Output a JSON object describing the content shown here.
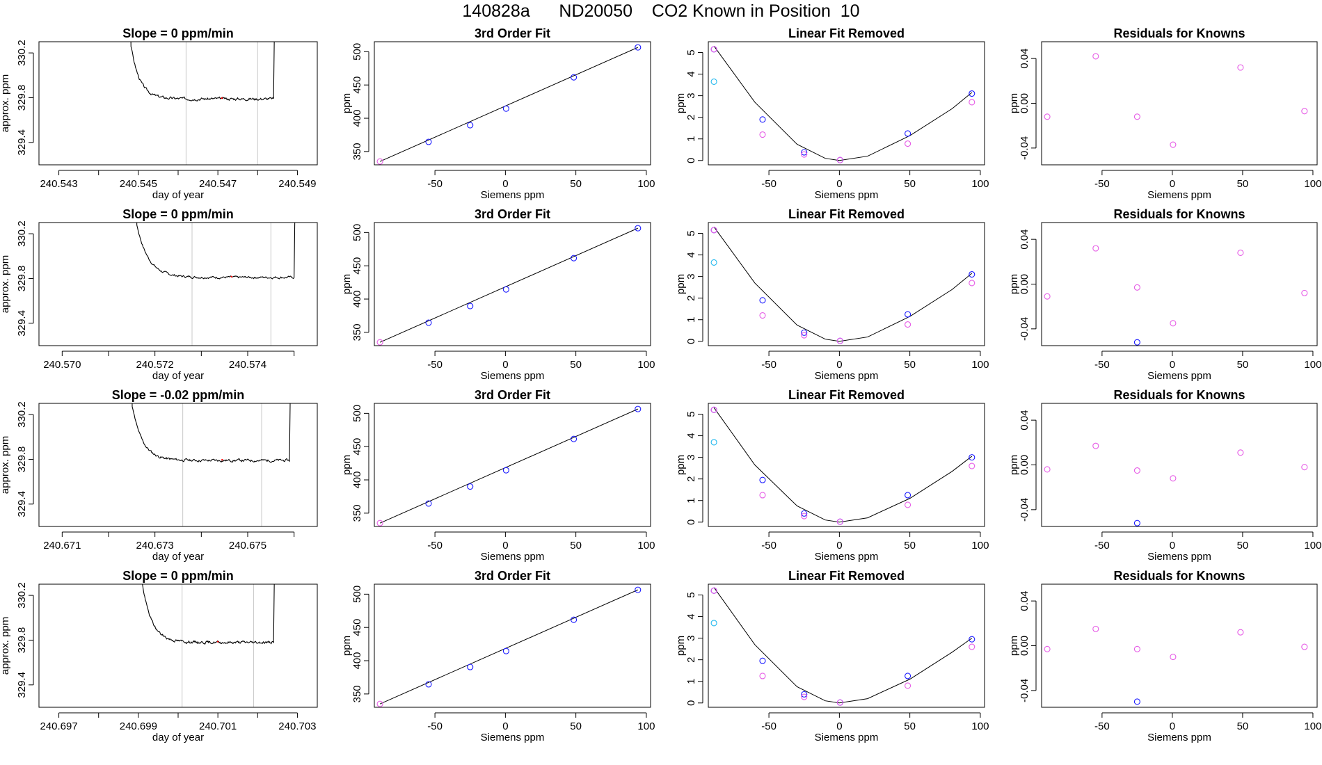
{
  "title": "140828a      ND20050    CO2 Known in Position  10",
  "colors": {
    "line": "#000000",
    "box": "#000000",
    "grid_vline": "#c8c8c8",
    "point_blue": "#1a1aff",
    "point_magenta": "#e65ce6",
    "point_cyan": "#21b8ee",
    "dot_red": "#ff0000"
  },
  "chart_data": [
    {
      "type": "line",
      "row": 1,
      "col": 1,
      "title": "Slope =  0  ppm/min",
      "xlabel": "day of year",
      "ylabel": "approx. ppm",
      "xlim": [
        240.5425,
        240.5495
      ],
      "ylim": [
        329.2,
        330.3
      ],
      "xticks": [
        240.543,
        240.544,
        240.545,
        240.546,
        240.547,
        240.548,
        240.549
      ],
      "xtick_labels": [
        "240.543",
        "",
        "240.545",
        "",
        "240.547",
        "",
        "240.549"
      ],
      "yticks": [
        329.4,
        329.8,
        330.2
      ],
      "ytick_labels": [
        "329.4",
        "329.8",
        "330.2"
      ],
      "vlines": [
        240.5462,
        240.548
      ],
      "trace": {
        "t_start": 240.5442,
        "t_end": 240.5484,
        "t_rise": 240.5448,
        "start": 330.3,
        "level": 329.79,
        "tau": 0.00022,
        "amp": 0.012,
        "seed": 3
      },
      "x": [],
      "y": []
    },
    {
      "type": "scatter",
      "row": 1,
      "col": 2,
      "title": "3rd Order Fit",
      "xlabel": "Siemens ppm",
      "ylabel": "ppm",
      "xlim": [
        -93,
        103
      ],
      "ylim": [
        330,
        515
      ],
      "xticks": [
        -50,
        0,
        50,
        100
      ],
      "xtick_labels": [
        "-50",
        "0",
        "50",
        "100"
      ],
      "yticks": [
        350,
        400,
        450,
        500
      ],
      "ytick_labels": [
        "350",
        "400",
        "450",
        "500"
      ],
      "x": [
        -89,
        -54.5,
        -25,
        0.5,
        48.5,
        94
      ],
      "y": [
        335,
        364.5,
        389.5,
        414.5,
        461.5,
        506.5
      ],
      "point_colors": [
        "magenta",
        "blue",
        "blue",
        "blue",
        "blue",
        "blue"
      ],
      "fit_line": {
        "x": [
          -89,
          94
        ],
        "y": [
          335,
          506.5
        ]
      }
    },
    {
      "type": "scatter",
      "row": 1,
      "col": 3,
      "title": "Linear Fit Removed",
      "xlabel": "Siemens ppm",
      "ylabel": "ppm",
      "xlim": [
        -93,
        103
      ],
      "ylim": [
        -0.2,
        5.5
      ],
      "xticks": [
        -50,
        0,
        50,
        100
      ],
      "xtick_labels": [
        "-50",
        "0",
        "50",
        "100"
      ],
      "yticks": [
        0,
        1,
        2,
        3,
        4,
        5
      ],
      "ytick_labels": [
        "0",
        "1",
        "2",
        "3",
        "4",
        "5"
      ],
      "series": [
        {
          "color": "blue",
          "x": [
            -89,
            -54.5,
            -25,
            0.5,
            48.5,
            94
          ],
          "y": [
            5.15,
            1.9,
            0.38,
            0.02,
            1.25,
            3.1
          ]
        },
        {
          "color": "magenta",
          "x": [
            -89,
            -54.5,
            -25,
            0.5,
            48.5,
            94
          ],
          "y": [
            5.15,
            1.2,
            0.28,
            0.02,
            0.78,
            2.7
          ]
        },
        {
          "color": "cyan",
          "x": [
            -89
          ],
          "y": [
            3.65
          ]
        }
      ],
      "curve": {
        "x": [
          -89,
          -60,
          -30,
          -10,
          0,
          20,
          50,
          80,
          94
        ],
        "y": [
          5.3,
          2.7,
          0.75,
          0.1,
          0.0,
          0.2,
          1.15,
          2.4,
          3.15
        ]
      }
    },
    {
      "type": "scatter",
      "row": 1,
      "col": 4,
      "title": "Residuals for Knowns",
      "xlabel": "Siemens ppm",
      "ylabel": "ppm",
      "xlim": [
        -93,
        103
      ],
      "ylim": [
        -0.055,
        0.055
      ],
      "xticks": [
        -50,
        0,
        50,
        100
      ],
      "xtick_labels": [
        "-50",
        "0",
        "50",
        "100"
      ],
      "yticks": [
        -0.04,
        0.0,
        0.04
      ],
      "ytick_labels": [
        "-0.04",
        "0.00",
        "0.04"
      ],
      "series": [
        {
          "color": "magenta",
          "x": [
            -89,
            -54.5,
            -25,
            0.5,
            48.5,
            94
          ],
          "y": [
            -0.012,
            0.042,
            -0.012,
            -0.037,
            0.032,
            -0.007
          ]
        }
      ]
    },
    {
      "type": "line",
      "row": 2,
      "col": 1,
      "title": "Slope =  0  ppm/min",
      "xlabel": "day of year",
      "ylabel": "approx. ppm",
      "xlim": [
        240.5695,
        240.5755
      ],
      "ylim": [
        329.2,
        330.3
      ],
      "xticks": [
        240.57,
        240.571,
        240.572,
        240.573,
        240.574,
        240.575
      ],
      "xtick_labels": [
        "240.570",
        "",
        "240.572",
        "",
        "240.574",
        ""
      ],
      "yticks": [
        329.4,
        329.8,
        330.2
      ],
      "ytick_labels": [
        "329.4",
        "329.8",
        "330.2"
      ],
      "vlines": [
        240.5728,
        240.5745
      ],
      "trace": {
        "t_start": 240.5711,
        "t_end": 240.575,
        "t_rise": 240.5716,
        "start": 330.3,
        "level": 329.81,
        "tau": 0.00025,
        "amp": 0.01,
        "seed": 7
      },
      "x": [],
      "y": []
    },
    {
      "type": "scatter",
      "row": 2,
      "col": 2,
      "title": "3rd Order Fit",
      "xlabel": "Siemens ppm",
      "ylabel": "ppm",
      "xlim": [
        -93,
        103
      ],
      "ylim": [
        330,
        515
      ],
      "xticks": [
        -50,
        0,
        50,
        100
      ],
      "xtick_labels": [
        "-50",
        "0",
        "50",
        "100"
      ],
      "yticks": [
        350,
        400,
        450,
        500
      ],
      "ytick_labels": [
        "350",
        "400",
        "450",
        "500"
      ],
      "x": [
        -89,
        -54.5,
        -25,
        0.5,
        48.5,
        94
      ],
      "y": [
        335,
        364.5,
        389.5,
        414.5,
        461.5,
        506.5
      ],
      "point_colors": [
        "magenta",
        "blue",
        "blue",
        "blue",
        "blue",
        "blue"
      ],
      "fit_line": {
        "x": [
          -89,
          94
        ],
        "y": [
          335,
          506.5
        ]
      }
    },
    {
      "type": "scatter",
      "row": 2,
      "col": 3,
      "title": "Linear Fit Removed",
      "xlabel": "Siemens ppm",
      "ylabel": "ppm",
      "xlim": [
        -93,
        103
      ],
      "ylim": [
        -0.2,
        5.5
      ],
      "xticks": [
        -50,
        0,
        50,
        100
      ],
      "xtick_labels": [
        "-50",
        "0",
        "50",
        "100"
      ],
      "yticks": [
        0,
        1,
        2,
        3,
        4,
        5
      ],
      "ytick_labels": [
        "0",
        "1",
        "2",
        "3",
        "4",
        "5"
      ],
      "series": [
        {
          "color": "blue",
          "x": [
            -89,
            -54.5,
            -25,
            0.5,
            48.5,
            94
          ],
          "y": [
            5.15,
            1.9,
            0.4,
            0.02,
            1.25,
            3.1
          ]
        },
        {
          "color": "magenta",
          "x": [
            -89,
            -54.5,
            -25,
            0.5,
            48.5,
            94
          ],
          "y": [
            5.15,
            1.2,
            0.28,
            0.02,
            0.78,
            2.7
          ]
        },
        {
          "color": "cyan",
          "x": [
            -89
          ],
          "y": [
            3.65
          ]
        }
      ],
      "curve": {
        "x": [
          -89,
          -60,
          -30,
          -10,
          0,
          20,
          50,
          80,
          94
        ],
        "y": [
          5.3,
          2.7,
          0.75,
          0.1,
          0.0,
          0.2,
          1.15,
          2.4,
          3.15
        ]
      }
    },
    {
      "type": "scatter",
      "row": 2,
      "col": 4,
      "title": "Residuals for Knowns",
      "xlabel": "Siemens ppm",
      "ylabel": "ppm",
      "xlim": [
        -93,
        103
      ],
      "ylim": [
        -0.055,
        0.055
      ],
      "xticks": [
        -50,
        0,
        50,
        100
      ],
      "xtick_labels": [
        "-50",
        "0",
        "50",
        "100"
      ],
      "yticks": [
        -0.04,
        0.0,
        0.04
      ],
      "ytick_labels": [
        "-0.04",
        "0.00",
        "0.04"
      ],
      "series": [
        {
          "color": "magenta",
          "x": [
            -89,
            -54.5,
            -25,
            0.5,
            48.5,
            94
          ],
          "y": [
            -0.011,
            0.032,
            -0.003,
            -0.035,
            0.028,
            -0.008
          ]
        },
        {
          "color": "blue",
          "x": [
            -25
          ],
          "y": [
            -0.052
          ]
        }
      ]
    },
    {
      "type": "line",
      "row": 3,
      "col": 1,
      "title": "Slope =  -0.02  ppm/min",
      "xlabel": "day of year",
      "ylabel": "approx. ppm",
      "xlim": [
        240.6705,
        240.6765
      ],
      "ylim": [
        329.2,
        330.3
      ],
      "xticks": [
        240.671,
        240.672,
        240.673,
        240.674,
        240.675,
        240.676
      ],
      "xtick_labels": [
        "240.671",
        "",
        "240.673",
        "",
        "240.675",
        ""
      ],
      "yticks": [
        329.4,
        329.8,
        330.2
      ],
      "ytick_labels": [
        "329.4",
        "329.8",
        "330.2"
      ],
      "vlines": [
        240.6736,
        240.6753
      ],
      "trace": {
        "t_start": 240.672,
        "t_end": 240.6759,
        "t_rise": 240.6725,
        "start": 330.3,
        "level": 329.79,
        "tau": 0.00022,
        "amp": 0.012,
        "seed": 11
      },
      "x": [],
      "y": []
    },
    {
      "type": "scatter",
      "row": 3,
      "col": 2,
      "title": "3rd Order Fit",
      "xlabel": "Siemens ppm",
      "ylabel": "ppm",
      "xlim": [
        -93,
        103
      ],
      "ylim": [
        330,
        515
      ],
      "xticks": [
        -50,
        0,
        50,
        100
      ],
      "xtick_labels": [
        "-50",
        "0",
        "50",
        "100"
      ],
      "yticks": [
        350,
        400,
        450,
        500
      ],
      "ytick_labels": [
        "350",
        "400",
        "450",
        "500"
      ],
      "x": [
        -89,
        -54.5,
        -25,
        0.5,
        48.5,
        94
      ],
      "y": [
        335,
        364.5,
        390,
        414.5,
        461.5,
        506.5
      ],
      "point_colors": [
        "magenta",
        "blue",
        "blue",
        "blue",
        "blue",
        "blue"
      ],
      "fit_line": {
        "x": [
          -89,
          94
        ],
        "y": [
          335,
          506.5
        ]
      }
    },
    {
      "type": "scatter",
      "row": 3,
      "col": 3,
      "title": "Linear Fit Removed",
      "xlabel": "Siemens ppm",
      "ylabel": "ppm",
      "xlim": [
        -93,
        103
      ],
      "ylim": [
        -0.2,
        5.5
      ],
      "xticks": [
        -50,
        0,
        50,
        100
      ],
      "xtick_labels": [
        "-50",
        "0",
        "50",
        "100"
      ],
      "yticks": [
        0,
        1,
        2,
        3,
        4,
        5
      ],
      "ytick_labels": [
        "0",
        "1",
        "2",
        "3",
        "4",
        "5"
      ],
      "series": [
        {
          "color": "blue",
          "x": [
            -89,
            -54.5,
            -25,
            0.5,
            48.5,
            94
          ],
          "y": [
            5.2,
            1.95,
            0.4,
            0.02,
            1.25,
            3.0
          ]
        },
        {
          "color": "magenta",
          "x": [
            -89,
            -54.5,
            -25,
            0.5,
            48.5,
            94
          ],
          "y": [
            5.2,
            1.25,
            0.28,
            0.02,
            0.8,
            2.6
          ]
        },
        {
          "color": "cyan",
          "x": [
            -89
          ],
          "y": [
            3.7
          ]
        }
      ],
      "curve": {
        "x": [
          -89,
          -60,
          -30,
          -10,
          0,
          20,
          50,
          80,
          94
        ],
        "y": [
          5.3,
          2.65,
          0.75,
          0.1,
          0.0,
          0.2,
          1.1,
          2.35,
          3.05
        ]
      }
    },
    {
      "type": "scatter",
      "row": 3,
      "col": 4,
      "title": "Residuals for Knowns",
      "xlabel": "Siemens ppm",
      "ylabel": "ppm",
      "xlim": [
        -93,
        103
      ],
      "ylim": [
        -0.055,
        0.055
      ],
      "xticks": [
        -50,
        0,
        50,
        100
      ],
      "xtick_labels": [
        "-50",
        "0",
        "50",
        "100"
      ],
      "yticks": [
        -0.04,
        0.0,
        0.04
      ],
      "ytick_labels": [
        "-0.04",
        "0.00",
        "0.04"
      ],
      "series": [
        {
          "color": "magenta",
          "x": [
            -89,
            -54.5,
            -25,
            0.5,
            48.5,
            94
          ],
          "y": [
            -0.004,
            0.017,
            -0.005,
            -0.012,
            0.011,
            -0.002
          ]
        },
        {
          "color": "blue",
          "x": [
            -25
          ],
          "y": [
            -0.052
          ]
        }
      ]
    },
    {
      "type": "line",
      "row": 4,
      "col": 1,
      "title": "Slope =  0  ppm/min",
      "xlabel": "day of year",
      "ylabel": "approx. ppm",
      "xlim": [
        240.6965,
        240.7035
      ],
      "ylim": [
        329.2,
        330.3
      ],
      "xticks": [
        240.697,
        240.698,
        240.699,
        240.7,
        240.701,
        240.702,
        240.703
      ],
      "xtick_labels": [
        "240.697",
        "",
        "240.699",
        "",
        "240.701",
        "",
        "240.703"
      ],
      "yticks": [
        329.4,
        329.8,
        330.2
      ],
      "ytick_labels": [
        "329.4",
        "329.8",
        "330.2"
      ],
      "vlines": [
        240.7001,
        240.7019
      ],
      "trace": {
        "t_start": 240.6985,
        "t_end": 240.7024,
        "t_rise": 240.6991,
        "start": 330.3,
        "level": 329.78,
        "tau": 0.00024,
        "amp": 0.012,
        "seed": 19
      },
      "x": [],
      "y": []
    },
    {
      "type": "scatter",
      "row": 4,
      "col": 2,
      "title": "3rd Order Fit",
      "xlabel": "Siemens ppm",
      "ylabel": "ppm",
      "xlim": [
        -93,
        103
      ],
      "ylim": [
        330,
        515
      ],
      "xticks": [
        -50,
        0,
        50,
        100
      ],
      "xtick_labels": [
        "-50",
        "0",
        "50",
        "100"
      ],
      "yticks": [
        350,
        400,
        450,
        500
      ],
      "ytick_labels": [
        "350",
        "400",
        "450",
        "500"
      ],
      "x": [
        -89,
        -54.5,
        -25,
        0.5,
        48.5,
        94
      ],
      "y": [
        335,
        364.5,
        390.5,
        414.5,
        461.5,
        506.5
      ],
      "point_colors": [
        "magenta",
        "blue",
        "blue",
        "blue",
        "blue",
        "blue"
      ],
      "fit_line": {
        "x": [
          -89,
          94
        ],
        "y": [
          335,
          506.5
        ]
      }
    },
    {
      "type": "scatter",
      "row": 4,
      "col": 3,
      "title": "Linear Fit Removed",
      "xlabel": "Siemens ppm",
      "ylabel": "ppm",
      "xlim": [
        -93,
        103
      ],
      "ylim": [
        -0.2,
        5.5
      ],
      "xticks": [
        -50,
        0,
        50,
        100
      ],
      "xtick_labels": [
        "-50",
        "0",
        "50",
        "100"
      ],
      "yticks": [
        0,
        1,
        2,
        3,
        4,
        5
      ],
      "ytick_labels": [
        "0",
        "1",
        "2",
        "3",
        "4",
        "5"
      ],
      "series": [
        {
          "color": "blue",
          "x": [
            -89,
            -54.5,
            -25,
            0.5,
            48.5,
            94
          ],
          "y": [
            5.2,
            1.95,
            0.4,
            0.02,
            1.25,
            2.95
          ]
        },
        {
          "color": "magenta",
          "x": [
            -89,
            -54.5,
            -25,
            0.5,
            48.5,
            94
          ],
          "y": [
            5.2,
            1.25,
            0.28,
            0.02,
            0.8,
            2.6
          ]
        },
        {
          "color": "cyan",
          "x": [
            -89
          ],
          "y": [
            3.7
          ]
        }
      ],
      "curve": {
        "x": [
          -89,
          -60,
          -30,
          -10,
          0,
          20,
          50,
          80,
          94
        ],
        "y": [
          5.35,
          2.7,
          0.75,
          0.1,
          0.0,
          0.2,
          1.1,
          2.35,
          3.0
        ]
      }
    },
    {
      "type": "scatter",
      "row": 4,
      "col": 4,
      "title": "Residuals for Knowns",
      "xlabel": "Siemens ppm",
      "ylabel": "ppm",
      "xlim": [
        -93,
        103
      ],
      "ylim": [
        -0.055,
        0.055
      ],
      "xticks": [
        -50,
        0,
        50,
        100
      ],
      "xtick_labels": [
        "-50",
        "0",
        "50",
        "100"
      ],
      "yticks": [
        -0.04,
        0.0,
        0.04
      ],
      "ytick_labels": [
        "-0.04",
        "0.00",
        "0.04"
      ],
      "series": [
        {
          "color": "magenta",
          "x": [
            -89,
            -54.5,
            -25,
            0.5,
            48.5,
            94
          ],
          "y": [
            -0.003,
            0.015,
            -0.003,
            -0.01,
            0.012,
            -0.001
          ]
        },
        {
          "color": "blue",
          "x": [
            -25
          ],
          "y": [
            -0.05
          ]
        }
      ]
    }
  ]
}
